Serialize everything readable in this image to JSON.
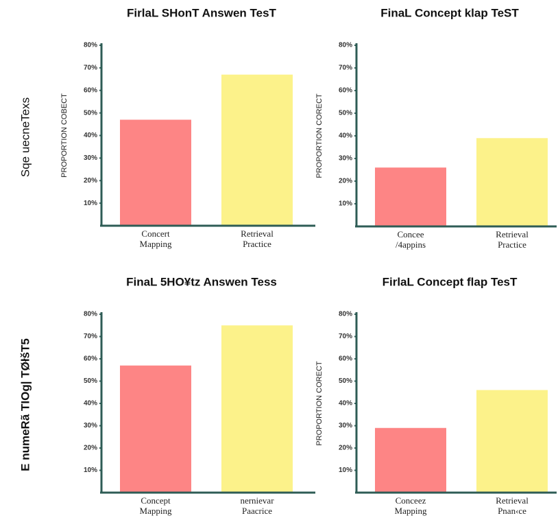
{
  "row_labels": [
    "Sqe uecneTexs",
    "E numeRã TIOg| TØłšT5"
  ],
  "chart_data": [
    {
      "type": "bar",
      "title": "FirlaL SHonT Answen TesT",
      "y_label": "PROPORTION COBECT",
      "categories": [
        "Concert Mapping",
        "Retrieval Practice"
      ],
      "values": [
        47,
        67
      ],
      "colors": [
        "#fd8585",
        "#fcf28a"
      ],
      "ylim": [
        0,
        80
      ],
      "yticks": [
        {
          "value": 10,
          "label": "10%"
        },
        {
          "value": 20,
          "label": "20%"
        },
        {
          "value": 30,
          "label": "30%"
        },
        {
          "value": 40,
          "label": "40%"
        },
        {
          "value": 50,
          "label": "50%"
        },
        {
          "value": 60,
          "label": "60%"
        },
        {
          "value": 70,
          "label": "70%"
        },
        {
          "value": 80,
          "label": "80%"
        }
      ]
    },
    {
      "type": "bar",
      "title": "FinaL Concept klap TeST",
      "y_label": "PROPORTION CORECT",
      "categories": [
        "Concee /4appins",
        "Retrieval Practice"
      ],
      "values": [
        26,
        39
      ],
      "colors": [
        "#fd8585",
        "#fcf28a"
      ],
      "ylim": [
        0,
        80
      ],
      "yticks": [
        {
          "value": 10,
          "label": "10%"
        },
        {
          "value": 20,
          "label": "20%"
        },
        {
          "value": 30,
          "label": "30%"
        },
        {
          "value": 40,
          "label": "40%"
        },
        {
          "value": 50,
          "label": "50%"
        },
        {
          "value": 60,
          "label": "60%"
        },
        {
          "value": 70,
          "label": "70%"
        },
        {
          "value": 80,
          "label": "80%"
        }
      ]
    },
    {
      "type": "bar",
      "title": "FinaL 5HO¥tz Answen Tess",
      "categories": [
        "Concept Mapping",
        "nernievar Paacrice"
      ],
      "values": [
        57,
        75
      ],
      "colors": [
        "#fd8585",
        "#fcf28a"
      ],
      "ylim": [
        0,
        80
      ],
      "yticks": [
        {
          "value": 10,
          "label": "10%"
        },
        {
          "value": 20,
          "label": "20%"
        },
        {
          "value": 30,
          "label": "30%"
        },
        {
          "value": 40,
          "label": "40%"
        },
        {
          "value": 50,
          "label": "50%"
        },
        {
          "value": 60,
          "label": "60%"
        },
        {
          "value": 70,
          "label": "70%"
        },
        {
          "value": 80,
          "label": "80%"
        }
      ]
    },
    {
      "type": "bar",
      "title": "FirlaL Concept flap TesT",
      "y_label": "PROPORTION CORECT",
      "categories": [
        "Conceez Mapping",
        "Retrieval Pnan‹ce"
      ],
      "values": [
        29,
        46
      ],
      "colors": [
        "#fd8585",
        "#fcf28a"
      ],
      "ylim": [
        0,
        80
      ],
      "yticks": [
        {
          "value": 10,
          "label": "10%"
        },
        {
          "value": 20,
          "label": "20%"
        },
        {
          "value": 30,
          "label": "30%"
        },
        {
          "value": 40,
          "label": "40%"
        },
        {
          "value": 50,
          "label": "50%"
        },
        {
          "value": 60,
          "label": "60%"
        },
        {
          "value": 70,
          "label": "70%"
        },
        {
          "value": 80,
          "label": "80%"
        }
      ]
    }
  ]
}
